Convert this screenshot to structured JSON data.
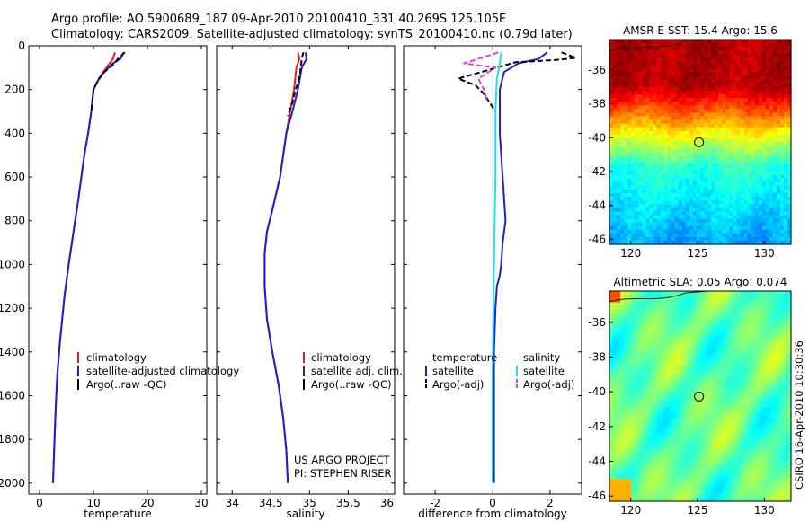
{
  "header": {
    "line1": "Argo profile: AO 5900689_187 09-Apr-2010 20100410_331 40.269S 125.105E",
    "line2": "Climatology: CARS2009. Satellite-adjusted climatology: synTS_20100410.nc (0.79d later)"
  },
  "colors": {
    "climatology": "#e02020",
    "satellite": "#1f1fd0",
    "argo": "#000000",
    "satellite_salinity": "#22e0e8",
    "argo_salinity": "#e040e0"
  },
  "chart_data": [
    {
      "type": "line",
      "panel": "temperature",
      "xlabel": "temperature",
      "xlim": [
        -2,
        31
      ],
      "ylim": [
        2050,
        0
      ],
      "y_reversed": true,
      "xticks": [
        0,
        10,
        20,
        30
      ],
      "yticks": [
        0,
        200,
        400,
        600,
        800,
        1000,
        1200,
        1400,
        1600,
        1800,
        2000
      ],
      "legend_position": "lower-right",
      "series": [
        {
          "name": "climatology",
          "color": "#e02020",
          "style": "solid",
          "x": [
            14.0,
            13.6,
            13.0,
            11.8,
            10.8,
            10.0,
            9.6,
            9.0,
            8.3,
            7.2,
            6.3,
            5.4,
            4.6,
            3.8,
            3.3,
            3.0,
            2.7,
            2.5
          ],
          "y": [
            30,
            60,
            80,
            120,
            160,
            200,
            300,
            400,
            500,
            700,
            850,
            1000,
            1150,
            1350,
            1500,
            1650,
            1850,
            2000
          ]
        },
        {
          "name": "satellite-adjusted climatology",
          "color": "#1f1fd0",
          "style": "solid",
          "x": [
            15.6,
            15.0,
            13.6,
            12.0,
            10.8,
            10.0,
            9.6,
            9.0,
            8.3,
            7.2,
            6.3,
            5.4,
            4.6,
            3.8,
            3.3,
            3.0,
            2.7,
            2.5
          ],
          "y": [
            30,
            60,
            80,
            120,
            160,
            200,
            300,
            400,
            500,
            700,
            850,
            1000,
            1150,
            1350,
            1500,
            1650,
            1850,
            2000
          ]
        },
        {
          "name": "Argo(..raw -QC)",
          "color": "#000000",
          "style": "dashed",
          "x": [
            15.8,
            15.0,
            14.5,
            14.2,
            13.5,
            12.0,
            11.0,
            10.4,
            10.0,
            9.6
          ],
          "y": [
            30,
            50,
            60,
            70,
            90,
            120,
            150,
            180,
            200,
            300
          ]
        }
      ]
    },
    {
      "type": "line",
      "panel": "salinity",
      "xlabel": "salinity",
      "xlim": [
        33.8,
        36.1
      ],
      "ylim": [
        2050,
        0
      ],
      "y_reversed": true,
      "xticks": [
        34,
        34.5,
        35,
        35.5,
        36
      ],
      "legend_position": "lower-right",
      "series": [
        {
          "name": "climatology",
          "color": "#e02020",
          "style": "solid",
          "x": [
            34.85,
            34.87,
            34.83,
            34.8,
            34.75,
            34.7,
            34.62,
            34.52,
            34.45,
            34.42,
            34.42,
            34.45,
            34.52,
            34.6,
            34.66,
            34.7,
            34.72
          ],
          "y": [
            30,
            60,
            100,
            200,
            300,
            400,
            600,
            750,
            850,
            950,
            1100,
            1250,
            1400,
            1550,
            1700,
            1850,
            2000
          ]
        },
        {
          "name": "satellite adj. clim.",
          "color": "#1f1fd0",
          "style": "solid",
          "x": [
            34.95,
            34.96,
            34.9,
            34.85,
            34.78,
            34.7,
            34.62,
            34.52,
            34.45,
            34.42,
            34.42,
            34.45,
            34.52,
            34.6,
            34.66,
            34.7,
            34.72
          ],
          "y": [
            30,
            60,
            100,
            200,
            300,
            400,
            600,
            750,
            850,
            950,
            1100,
            1250,
            1400,
            1550,
            1700,
            1850,
            2000
          ]
        },
        {
          "name": "Argo(..raw -QC)",
          "color": "#000000",
          "style": "dashed",
          "x": [
            34.92,
            34.9,
            34.88,
            34.86,
            34.82,
            34.78,
            34.72
          ],
          "y": [
            30,
            60,
            120,
            160,
            200,
            260,
            320
          ]
        }
      ]
    },
    {
      "type": "line",
      "panel": "difference",
      "xlabel": "difference from climatology",
      "xlim": [
        -3.1,
        3.1
      ],
      "ylim": [
        2050,
        0
      ],
      "y_reversed": true,
      "xticks": [
        -2,
        0,
        2
      ],
      "legend_position": "lower-right",
      "series": [
        {
          "name": "temperature satellite",
          "color": "#1f1fd0",
          "style": "solid",
          "x": [
            1.9,
            1.6,
            0.9,
            0.4,
            0.25,
            0.25,
            0.35,
            0.45,
            0.35,
            0.3,
            0.25,
            0.15,
            0.1,
            0.05,
            0.05,
            0.05
          ],
          "y": [
            30,
            60,
            80,
            120,
            200,
            400,
            600,
            800,
            900,
            1000,
            1050,
            1100,
            1200,
            1400,
            1700,
            2000
          ]
        },
        {
          "name": "temperature Argo(-adj)",
          "color": "#000000",
          "style": "dashed",
          "x": [
            2.4,
            2.9,
            2.2,
            0.8,
            -1.2,
            -0.6,
            -0.3,
            0.1
          ],
          "y": [
            30,
            55,
            65,
            75,
            150,
            180,
            220,
            300
          ]
        },
        {
          "name": "salinity satellite",
          "color": "#22e0e8",
          "style": "solid",
          "x": [
            0.3,
            0.25,
            0.15,
            0.1,
            0.1,
            0.05,
            0.0,
            0.0
          ],
          "y": [
            30,
            80,
            150,
            300,
            600,
            1000,
            1500,
            2000
          ]
        },
        {
          "name": "salinity Argo(-adj)",
          "color": "#e040e0",
          "style": "dashed",
          "x": [
            0.2,
            -0.5,
            -1.0,
            0.1,
            -0.5,
            -0.3,
            -0.2
          ],
          "y": [
            30,
            60,
            80,
            100,
            150,
            200,
            250
          ]
        }
      ]
    },
    {
      "type": "heatmap",
      "panel": "sst-map",
      "title": "AMSR-E SST: 15.4 Argo: 15.6",
      "xticks": [
        120,
        125,
        130
      ],
      "yticks": [
        -36,
        -38,
        -40,
        -42,
        -44,
        -46
      ],
      "xlim": [
        118.4,
        132
      ],
      "ylim": [
        -46.3,
        -34.2
      ],
      "marker": {
        "lon": 125.105,
        "lat": -40.269
      }
    },
    {
      "type": "heatmap",
      "panel": "sla-map",
      "title": "Altimetric SLA: 0.05 Argo: 0.074",
      "xticks": [
        120,
        125,
        130
      ],
      "yticks": [
        -36,
        -38,
        -40,
        -42,
        -44,
        -46
      ],
      "xlim": [
        118.4,
        132
      ],
      "ylim": [
        -46.3,
        -34.2
      ],
      "marker": {
        "lon": 125.105,
        "lat": -40.269
      }
    }
  ],
  "legends": {
    "temperature": [
      "climatology",
      "satellite-adjusted climatology",
      "Argo(..raw -QC)"
    ],
    "salinity": [
      "climatology",
      "satellite adj. clim.",
      "Argo(..raw -QC)"
    ],
    "difference": {
      "temperature_header": "temperature",
      "salinity_header": "salinity",
      "satellite": "satellite",
      "argo": "Argo(-adj)"
    }
  },
  "annotations": {
    "project": "US ARGO PROJECT",
    "pi": "PI: STEPHEN RISER",
    "credit": "CSIRO 16-Apr-2010 10:30:36"
  }
}
